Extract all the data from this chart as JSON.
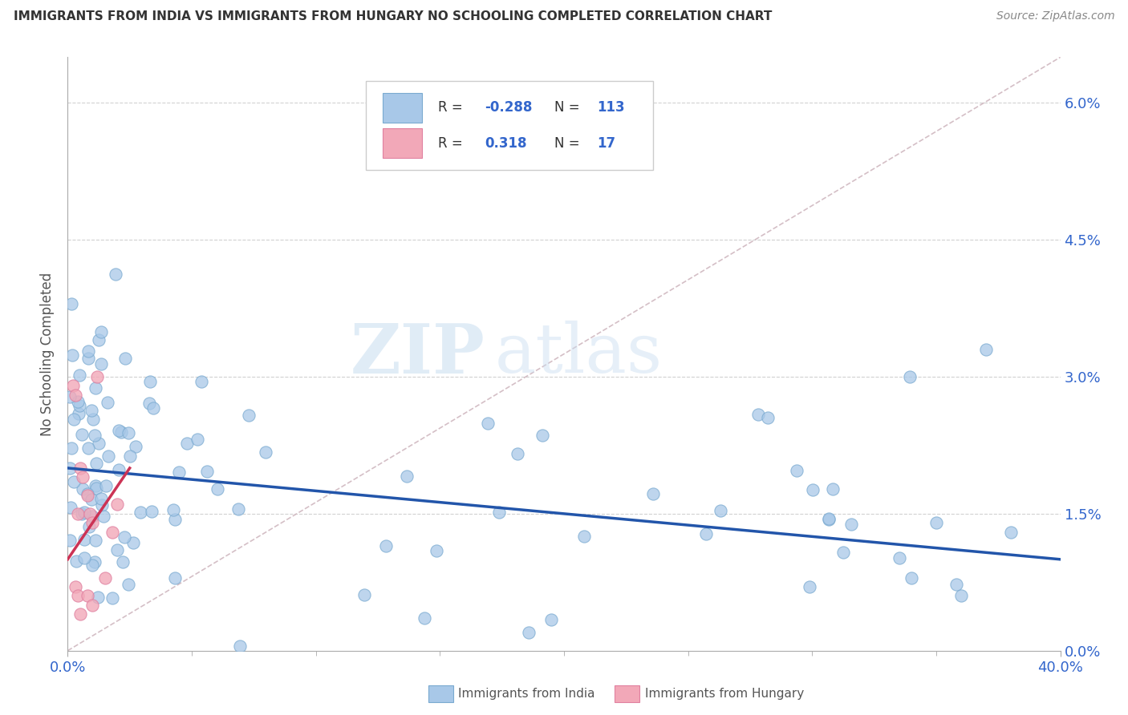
{
  "title": "IMMIGRANTS FROM INDIA VS IMMIGRANTS FROM HUNGARY NO SCHOOLING COMPLETED CORRELATION CHART",
  "source": "Source: ZipAtlas.com",
  "ylabel": "No Schooling Completed",
  "x_min": 0.0,
  "x_max": 0.4,
  "y_min": 0.0,
  "y_max": 0.065,
  "india_R": -0.288,
  "india_N": 113,
  "hungary_R": 0.318,
  "hungary_N": 17,
  "india_color": "#a8c8e8",
  "hungary_color": "#f2a8b8",
  "india_line_color": "#2255aa",
  "hungary_line_color": "#cc3355",
  "ref_line_color": "#d0b8c0",
  "watermark_zip": "ZIP",
  "watermark_atlas": "atlas",
  "ytick_vals": [
    0.0,
    0.015,
    0.03,
    0.045,
    0.06
  ],
  "ytick_labels": [
    "0.0%",
    "1.5%",
    "3.0%",
    "4.5%",
    "6.0%"
  ],
  "xtick_vals": [
    0.0,
    0.4
  ],
  "xtick_labels": [
    "0.0%",
    "40.0%"
  ],
  "grid_color": "#cccccc",
  "bottom_legend_india": "Immigrants from India",
  "bottom_legend_hungary": "Immigrants from Hungary"
}
